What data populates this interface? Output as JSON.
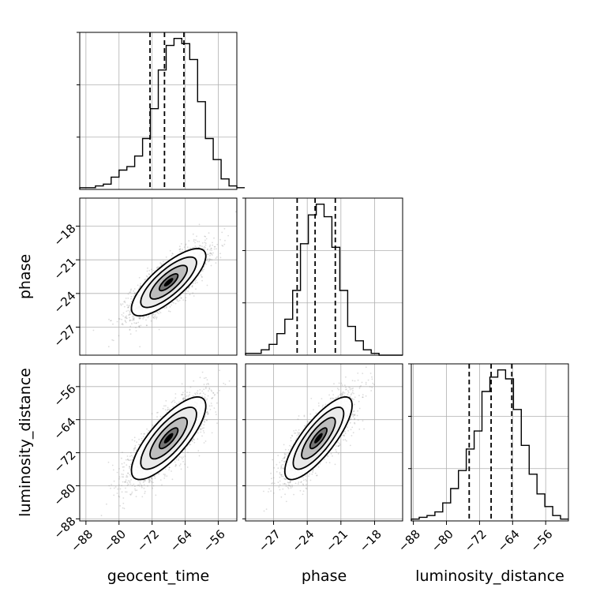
{
  "chart_data": {
    "type": "corner",
    "parameters": [
      "geocent_time",
      "phase",
      "luminosity_distance"
    ],
    "axes": {
      "geocent_time": {
        "label": "geocent_time",
        "range": [
          -89.5,
          -51.5
        ],
        "ticks": [
          -88,
          -80,
          -72,
          -64,
          -56
        ],
        "tick_labels": [
          "−88",
          "−80",
          "−72",
          "−64",
          "−56"
        ]
      },
      "phase": {
        "label": "phase",
        "range": [
          -29.5,
          -15.5
        ],
        "ticks": [
          -27,
          -24,
          -21,
          -18
        ],
        "tick_labels": [
          "−27",
          "−24",
          "−21",
          "−18"
        ]
      },
      "luminosity_distance": {
        "label": "luminosity_distance",
        "range": [
          -88.5,
          -50.5
        ],
        "ticks": [
          -88,
          -80,
          -72,
          -64,
          -56
        ],
        "tick_labels": [
          "−88",
          "−80",
          "−72",
          "−64",
          "−56"
        ]
      }
    },
    "marginals": [
      {
        "param": "geocent_time",
        "quantiles": [
          -72.5,
          -69.0,
          -64.3
        ],
        "bin_start": -89.5,
        "bin_width": 1.9,
        "counts": [
          1,
          1,
          2,
          3,
          7,
          11,
          13,
          19,
          29,
          46,
          68,
          82,
          86,
          83,
          74,
          50,
          29,
          17,
          6,
          2,
          1
        ]
      },
      {
        "param": "phase",
        "quantiles": [
          -24.9,
          -23.3,
          -21.5
        ],
        "bin_start": -29.5,
        "bin_width": 0.7,
        "counts": [
          1,
          1,
          3,
          6,
          12,
          20,
          36,
          62,
          78,
          84,
          77,
          60,
          36,
          16,
          8,
          3,
          1,
          0,
          0,
          0
        ]
      },
      {
        "param": "luminosity_distance",
        "quantiles": [
          -74.5,
          -69.2,
          -64.2
        ],
        "bin_start": -88.5,
        "bin_width": 1.9,
        "counts": [
          1,
          2,
          3,
          5,
          10,
          18,
          28,
          40,
          50,
          72,
          80,
          84,
          79,
          62,
          42,
          26,
          15,
          8,
          3,
          1
        ]
      }
    ],
    "correlations": [
      {
        "x": "geocent_time",
        "y": "phase",
        "center": [
          -68.0,
          -23.0
        ],
        "sigma": [
          4.5,
          1.5
        ],
        "rho": 0.78
      },
      {
        "x": "geocent_time",
        "y": "luminosity_distance",
        "center": [
          -68.0,
          -68.5
        ],
        "sigma": [
          4.5,
          5.0
        ],
        "rho": 0.78
      },
      {
        "x": "phase",
        "y": "luminosity_distance",
        "center": [
          -23.0,
          -68.5
        ],
        "sigma": [
          1.5,
          5.0
        ],
        "rho": 0.8
      }
    ],
    "contour_levels_sigma": [
      0.5,
      1.0,
      1.5,
      2.0
    ],
    "grid": true,
    "colors": {
      "line": "#000000",
      "grid": "#b0b0b0",
      "points": "#808080"
    }
  }
}
